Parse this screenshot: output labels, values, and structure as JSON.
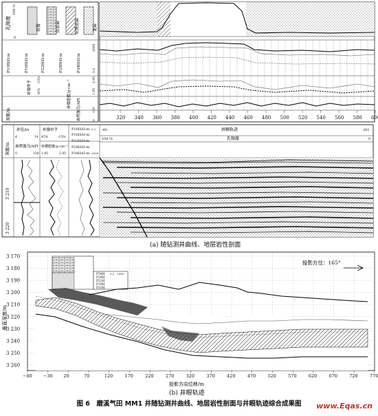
{
  "panel_a": {
    "top_log": {
      "porosity_label": "孔隙度",
      "porosity_max": "100 %",
      "porosity_min": "0",
      "lithology_legend": [
        "石膏",
        "白云岩",
        "灰质云岩",
        "泥岩"
      ],
      "resistivity_labels": [
        "P10H/Ω·m",
        "P16H/Ω·m",
        "P22H/Ω·m",
        "P28H/Ω·m",
        "P34H/Ω·m"
      ],
      "resistivity_range": [
        "0.2",
        "2000"
      ],
      "neutron_label": "补偿中子",
      "neutron_range": [
        "30%",
        "-15%"
      ],
      "density_label": "补偿密度/g·cm⁻³",
      "density_range": [
        "1.95",
        "2.95"
      ],
      "gr_label": "自然伽马/API",
      "gr_range": [
        "0",
        "150"
      ],
      "depth_label": "深度/m",
      "depth_ticks": [
        "320",
        "340",
        "360",
        "380",
        "400",
        "420",
        "440",
        "460",
        "480",
        "500",
        "520",
        "540",
        "560",
        "580",
        "600"
      ]
    },
    "bottom_log": {
      "col_depth": "深度/m",
      "col_caliper": "井径/in",
      "caliper_range": [
        "4",
        "14"
      ],
      "col_neutron": "补偿中子",
      "neutron_range": [
        "45%",
        "-15%"
      ],
      "col_gr": "自然伽马/API",
      "gr_range": [
        "0",
        "150"
      ],
      "col_density": "补偿密度/g·cm⁻³",
      "density_range": [
        "1.95",
        "2.95"
      ],
      "resistivity_labels": [
        "P10H/Ω·m",
        "P16H/Ω·m",
        "P22H/Ω·m",
        "P28H/Ω·m",
        "P34H/Ω·m"
      ],
      "resistivity_range": [
        "0.2",
        "2000"
      ],
      "trajectory_label": "井眼轨迹",
      "trajectory_range": [
        "-60",
        "281"
      ],
      "porosity_label": "孔隙度",
      "porosity_range": [
        "100 %",
        "0"
      ],
      "depth_ticks": [
        "3 210",
        "3 220"
      ]
    },
    "caption": "(a) 随钻测井曲线、地层岩性剖面"
  },
  "panel_b": {
    "y_label": "垂直深度/m",
    "x_label": "投影方向位移/m",
    "azimuth_note": "投影方位：165°",
    "y_ticks": [
      "3 170",
      "3 180",
      "3 190",
      "3 200",
      "3 210",
      "3 220",
      "3 230",
      "3 240",
      "3 250",
      "3 260"
    ],
    "x_ticks": [
      "−80",
      "−30",
      "20",
      "70",
      "120",
      "170",
      "220",
      "270",
      "320",
      "370",
      "420",
      "470",
      "520",
      "570",
      "620",
      "670",
      "720",
      "770"
    ],
    "inset_labels": [
      "P34H",
      "P28H",
      "P22H",
      "P16H",
      "P10H"
    ],
    "inset_range": [
      "0.2",
      "2000"
    ],
    "caption": "(b) 井眼轨迹"
  },
  "figure_caption": "图 6　磨溪气田 MM1 井随钻测井曲线、地层岩性剖面与井眼轨迹综合成果图",
  "watermark": "www.Eqas.cn"
}
